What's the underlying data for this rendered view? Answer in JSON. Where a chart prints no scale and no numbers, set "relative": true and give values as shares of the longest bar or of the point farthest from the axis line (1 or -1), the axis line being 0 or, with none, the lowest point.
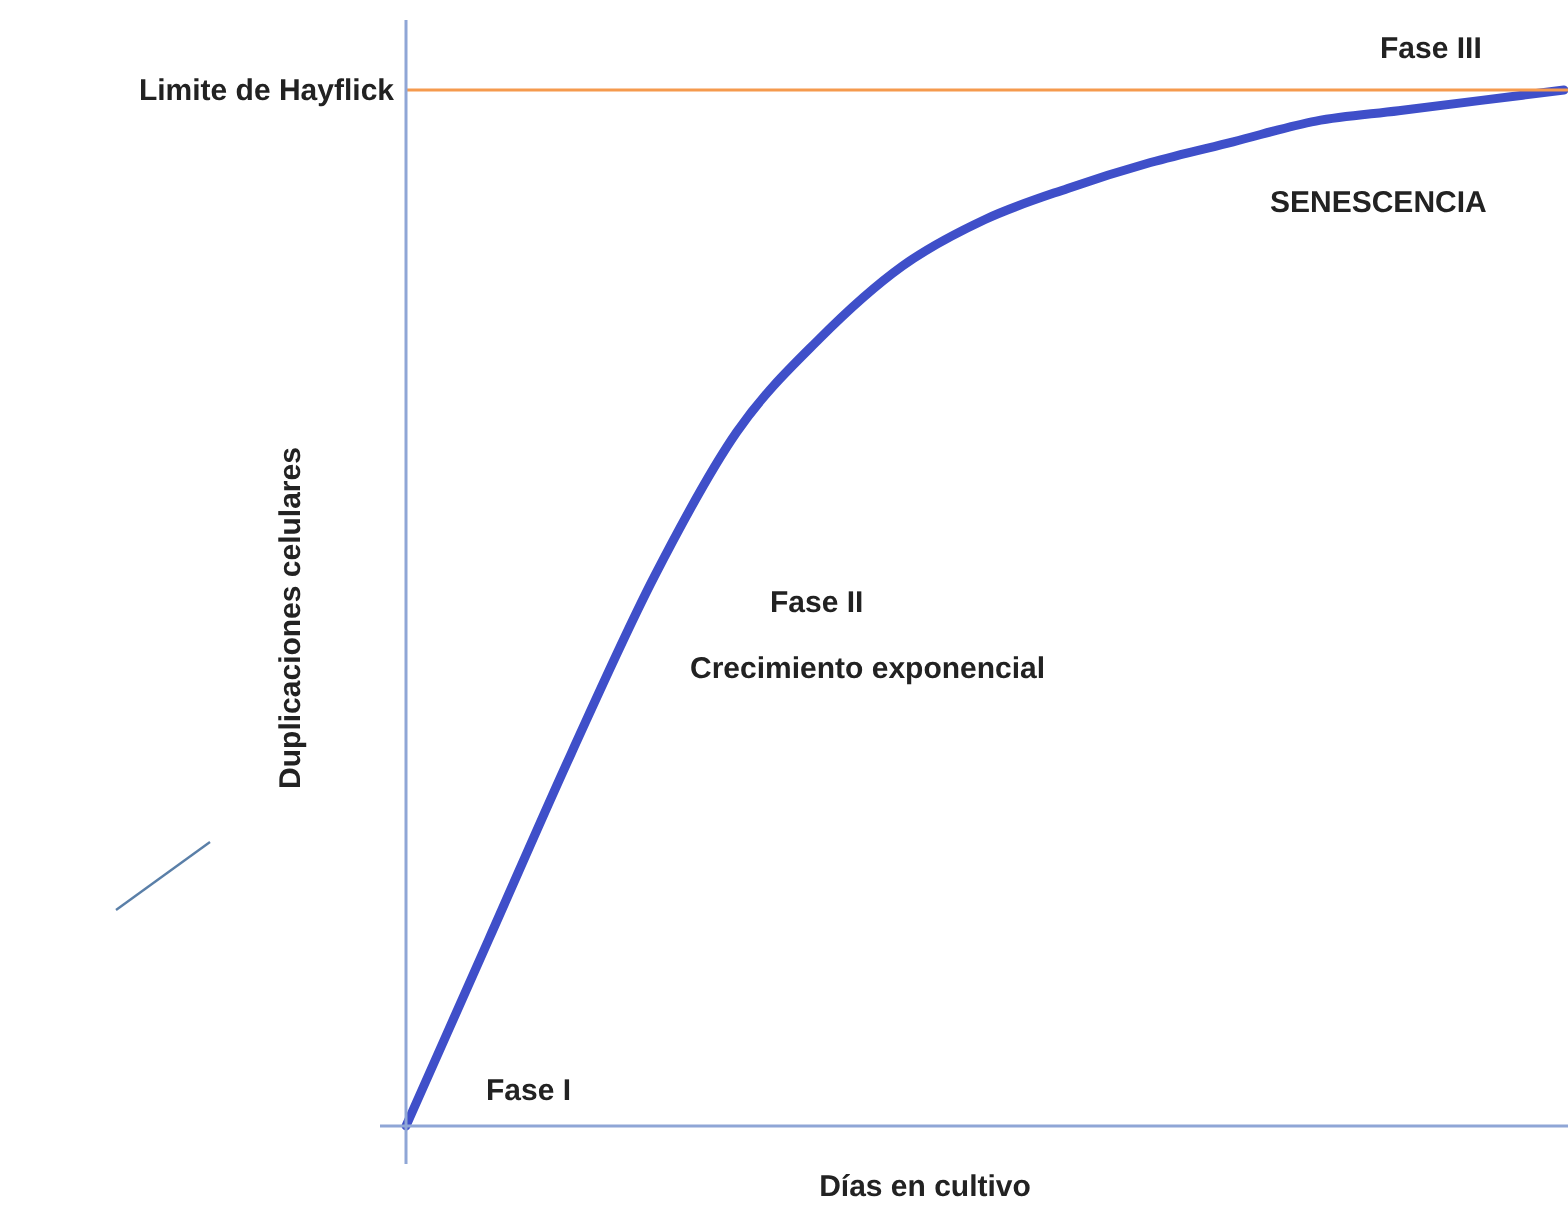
{
  "chart_data": {
    "type": "line",
    "relative": true,
    "xlabel": "Días en cultivo",
    "ylabel": "Duplicaciones celulares",
    "categories": [
      null,
      null,
      null,
      null,
      null,
      null,
      null,
      null,
      null,
      null,
      null,
      null,
      null,
      null,
      null
    ],
    "series": [
      {
        "color": "#3f4fc9",
        "values": [
          0,
          0.18,
          0.36,
          0.53,
          0.67,
          0.76,
          0.83,
          0.875,
          0.905,
          0.93,
          0.95,
          0.97,
          0.98,
          0.99,
          1
        ]
      }
    ],
    "ref_lines": [
      {
        "axis": "y",
        "value": 1,
        "label": "Limite de Hayflick",
        "color": "#f59a4e"
      }
    ],
    "annotations": [
      "Fase I",
      "Fase II",
      "Crecimiento exponencial",
      "SENESCENCIA",
      "Fase III"
    ],
    "marker": "none",
    "line_style": "solid"
  }
}
